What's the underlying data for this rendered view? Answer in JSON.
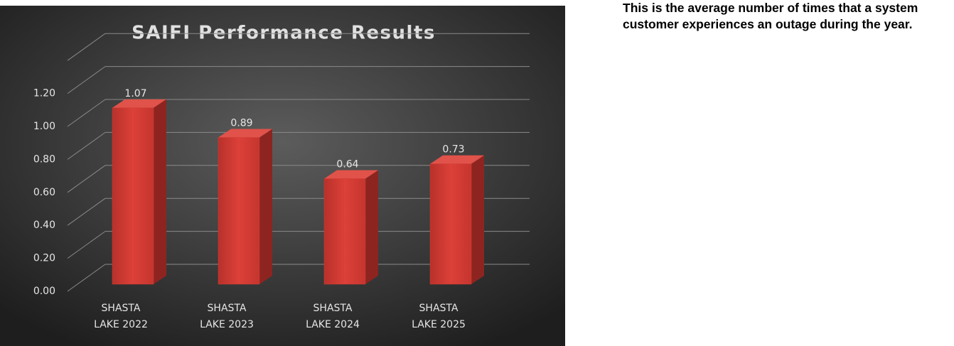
{
  "chart_data": {
    "type": "bar",
    "title": "SAIFI Performance Results",
    "categories": [
      "SHASTA LAKE 2022",
      "SHASTA LAKE 2023",
      "SHASTA LAKE 2024",
      "SHASTA LAKE 2025"
    ],
    "values": [
      1.07,
      0.89,
      0.64,
      0.73
    ],
    "color": "#d13a32",
    "ylim": [
      0,
      1.4
    ],
    "yticks": [
      {
        "value": 0,
        "label": "0.00"
      },
      {
        "value": 0.2,
        "label": "0.20"
      },
      {
        "value": 0.4,
        "label": "0.40"
      },
      {
        "value": 0.6,
        "label": "0.60"
      },
      {
        "value": 0.8,
        "label": "0.80"
      },
      {
        "value": 1,
        "label": "1.00"
      },
      {
        "value": 1.2,
        "label": "1.20"
      }
    ],
    "grid": true
  },
  "description": "This is the average number of times that a system customer experiences an outage during the year."
}
